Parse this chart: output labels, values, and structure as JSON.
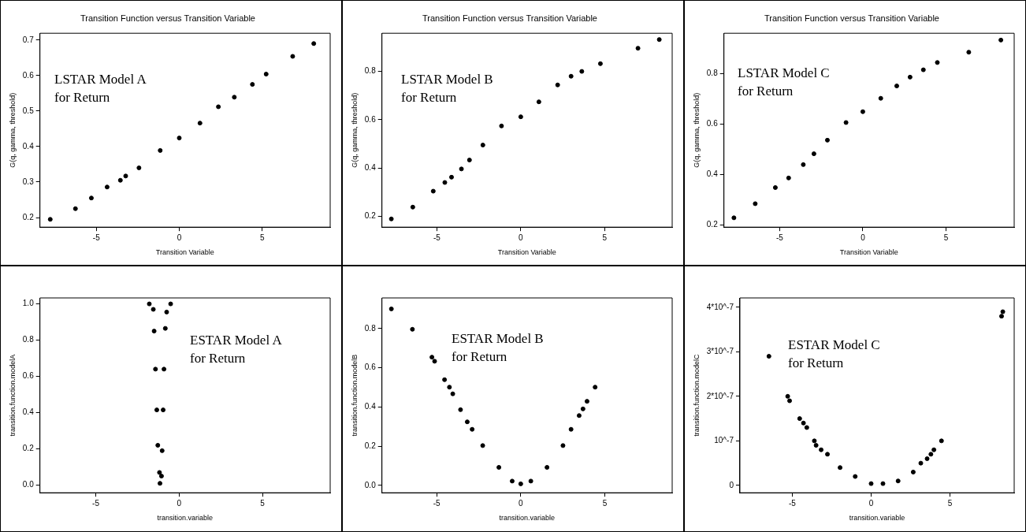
{
  "chart_data": [
    {
      "type": "scatter",
      "title": "Transition Function versus Transition Variable",
      "xlabel": "Transition Variable",
      "ylabel": "G(q, gamma, threshold)",
      "annotations": [
        "LSTAR Model A",
        "for Return"
      ],
      "color": "#000000",
      "marker": "circle",
      "xlim": [
        -8.4,
        9.1
      ],
      "ylim": [
        0.173,
        0.719
      ],
      "xticks": [
        -5,
        0,
        5
      ],
      "yticks": [
        0.2,
        0.3,
        0.4,
        0.5,
        0.6,
        0.7
      ],
      "x": [
        -7.78,
        -6.26,
        -5.3,
        -4.35,
        -3.55,
        -3.23,
        -2.43,
        -1.15,
        0,
        1.25,
        2.36,
        3.32,
        4.41,
        5.24,
        6.84,
        8.11
      ],
      "values": [
        0.195,
        0.225,
        0.255,
        0.286,
        0.305,
        0.317,
        0.34,
        0.389,
        0.424,
        0.466,
        0.512,
        0.539,
        0.575,
        0.604,
        0.654,
        0.69
      ]
    },
    {
      "type": "scatter",
      "title": "Transition Function versus Transition Variable",
      "xlabel": "Transition Variable",
      "ylabel": "G(q, gamma, threshold)",
      "annotations": [
        "LSTAR Model B",
        "for Return"
      ],
      "color": "#000000",
      "marker": "circle",
      "xlim": [
        -8.28,
        9.03
      ],
      "ylim": [
        0.155,
        0.958
      ],
      "xticks": [
        -5,
        0,
        5
      ],
      "yticks": [
        0.2,
        0.4,
        0.6,
        0.8
      ],
      "x": [
        -7.72,
        -6.44,
        -5.22,
        -4.53,
        -4.13,
        -3.54,
        -3.06,
        -2.26,
        -1.15,
        0,
        1.08,
        2.2,
        3.0,
        3.64,
        4.75,
        6.99,
        8.26
      ],
      "values": [
        0.189,
        0.238,
        0.304,
        0.34,
        0.362,
        0.396,
        0.433,
        0.495,
        0.574,
        0.612,
        0.674,
        0.744,
        0.78,
        0.8,
        0.832,
        0.896,
        0.932
      ]
    },
    {
      "type": "scatter",
      "title": "Transition Function versus Transition Variable",
      "xlabel": "Transition Variable",
      "ylabel": "G(q, gamma, threshold)",
      "annotations": [
        "LSTAR Model C",
        "for Return"
      ],
      "color": "#000000",
      "marker": "circle",
      "xlim": [
        -8.35,
        9.1
      ],
      "ylim": [
        0.19,
        0.959
      ],
      "xticks": [
        -5,
        0,
        5
      ],
      "yticks": [
        0.2,
        0.4,
        0.6,
        0.8
      ],
      "x": [
        -7.75,
        -6.47,
        -5.26,
        -4.46,
        -3.58,
        -2.94,
        -2.13,
        -1.01,
        0,
        1.08,
        2.04,
        2.84,
        3.64,
        4.48,
        6.37,
        8.3
      ],
      "values": [
        0.227,
        0.283,
        0.347,
        0.385,
        0.438,
        0.481,
        0.535,
        0.605,
        0.648,
        0.701,
        0.75,
        0.785,
        0.814,
        0.843,
        0.884,
        0.932
      ]
    },
    {
      "type": "scatter",
      "xlabel": "transition.variable",
      "ylabel": "transition.function.modelA",
      "annotations": [
        "ESTAR Model A",
        "for Return"
      ],
      "color": "#000000",
      "marker": "circle",
      "xlim": [
        -8.35,
        9.06
      ],
      "ylim": [
        -0.042,
        1.033
      ],
      "xticks": [
        -5,
        0,
        5
      ],
      "yticks": [
        {
          "value": 0,
          "label": "0.0"
        },
        0.2,
        0.4,
        0.6,
        0.8,
        {
          "value": 1,
          "label": "1.0"
        }
      ],
      "x": [
        -1.79,
        -1.55,
        -1.5,
        -1.42,
        -1.34,
        -1.28,
        -1.18,
        -1.15,
        -1.06,
        -1.02,
        -0.96,
        -0.91,
        -0.83,
        -0.75,
        -0.51
      ],
      "values": [
        1.0,
        0.97,
        0.85,
        0.64,
        0.415,
        0.22,
        0.07,
        0.01,
        0.05,
        0.19,
        0.415,
        0.64,
        0.865,
        0.955,
        1.0
      ]
    },
    {
      "type": "scatter",
      "xlabel": "transition.variable",
      "ylabel": "transition.function.modelB",
      "annotations": [
        "ESTAR Model B",
        "for Return"
      ],
      "color": "#000000",
      "marker": "circle",
      "xlim": [
        -8.25,
        9.0
      ],
      "ylim": [
        -0.0375,
        0.956
      ],
      "xticks": [
        -5,
        0,
        5
      ],
      "yticks": [
        {
          "value": 0,
          "label": "0.0"
        },
        0.2,
        0.4,
        0.6,
        0.8
      ],
      "x": [
        -7.69,
        -6.44,
        -5.28,
        -5.12,
        -4.53,
        -4.24,
        -4.04,
        -3.58,
        -3.18,
        -2.89,
        -2.26,
        -1.3,
        -0.51,
        0,
        0.6,
        1.56,
        2.51,
        2.99,
        3.47,
        3.7,
        3.94,
        4.42
      ],
      "values": [
        0.9,
        0.796,
        0.654,
        0.633,
        0.539,
        0.501,
        0.467,
        0.386,
        0.324,
        0.286,
        0.203,
        0.092,
        0.022,
        0.008,
        0.022,
        0.092,
        0.203,
        0.286,
        0.356,
        0.39,
        0.429,
        0.501
      ]
    },
    {
      "type": "scatter",
      "xlabel": "transition.variable",
      "ylabel": "transition.function.modelC",
      "annotations": [
        "ESTAR Model C",
        "for Return"
      ],
      "color": "#000000",
      "marker": "circle",
      "xlim": [
        -8.32,
        9.07
      ],
      "ylim": [
        -1.65e-08,
        4.21e-07
      ],
      "xticks": [
        -5,
        0,
        5
      ],
      "yticks": [
        0,
        {
          "value": 1e-07,
          "label": "10^-7"
        },
        {
          "value": 2e-07,
          "label": "2*10^-7"
        },
        {
          "value": 3e-07,
          "label": "3*10^-7"
        },
        {
          "value": 4e-07,
          "label": "4*10^-7"
        }
      ],
      "x": [
        -6.48,
        -5.29,
        -5.17,
        -4.53,
        -4.29,
        -4.08,
        -3.6,
        -3.49,
        -3.17,
        -2.77,
        -1.97,
        -1.01,
        0,
        0.75,
        1.71,
        2.67,
        3.15,
        3.55,
        3.79,
        3.98,
        4.46,
        8.27,
        8.35
      ],
      "values": [
        2.9e-07,
        2e-07,
        1.9e-07,
        1.5e-07,
        1.4e-07,
        1.3e-07,
        1e-07,
        9e-08,
        8e-08,
        7e-08,
        4e-08,
        2e-08,
        4e-09,
        4e-09,
        1e-08,
        3e-08,
        5e-08,
        6e-08,
        7e-08,
        8e-08,
        1e-07,
        3.8e-07,
        3.9e-07
      ]
    }
  ]
}
